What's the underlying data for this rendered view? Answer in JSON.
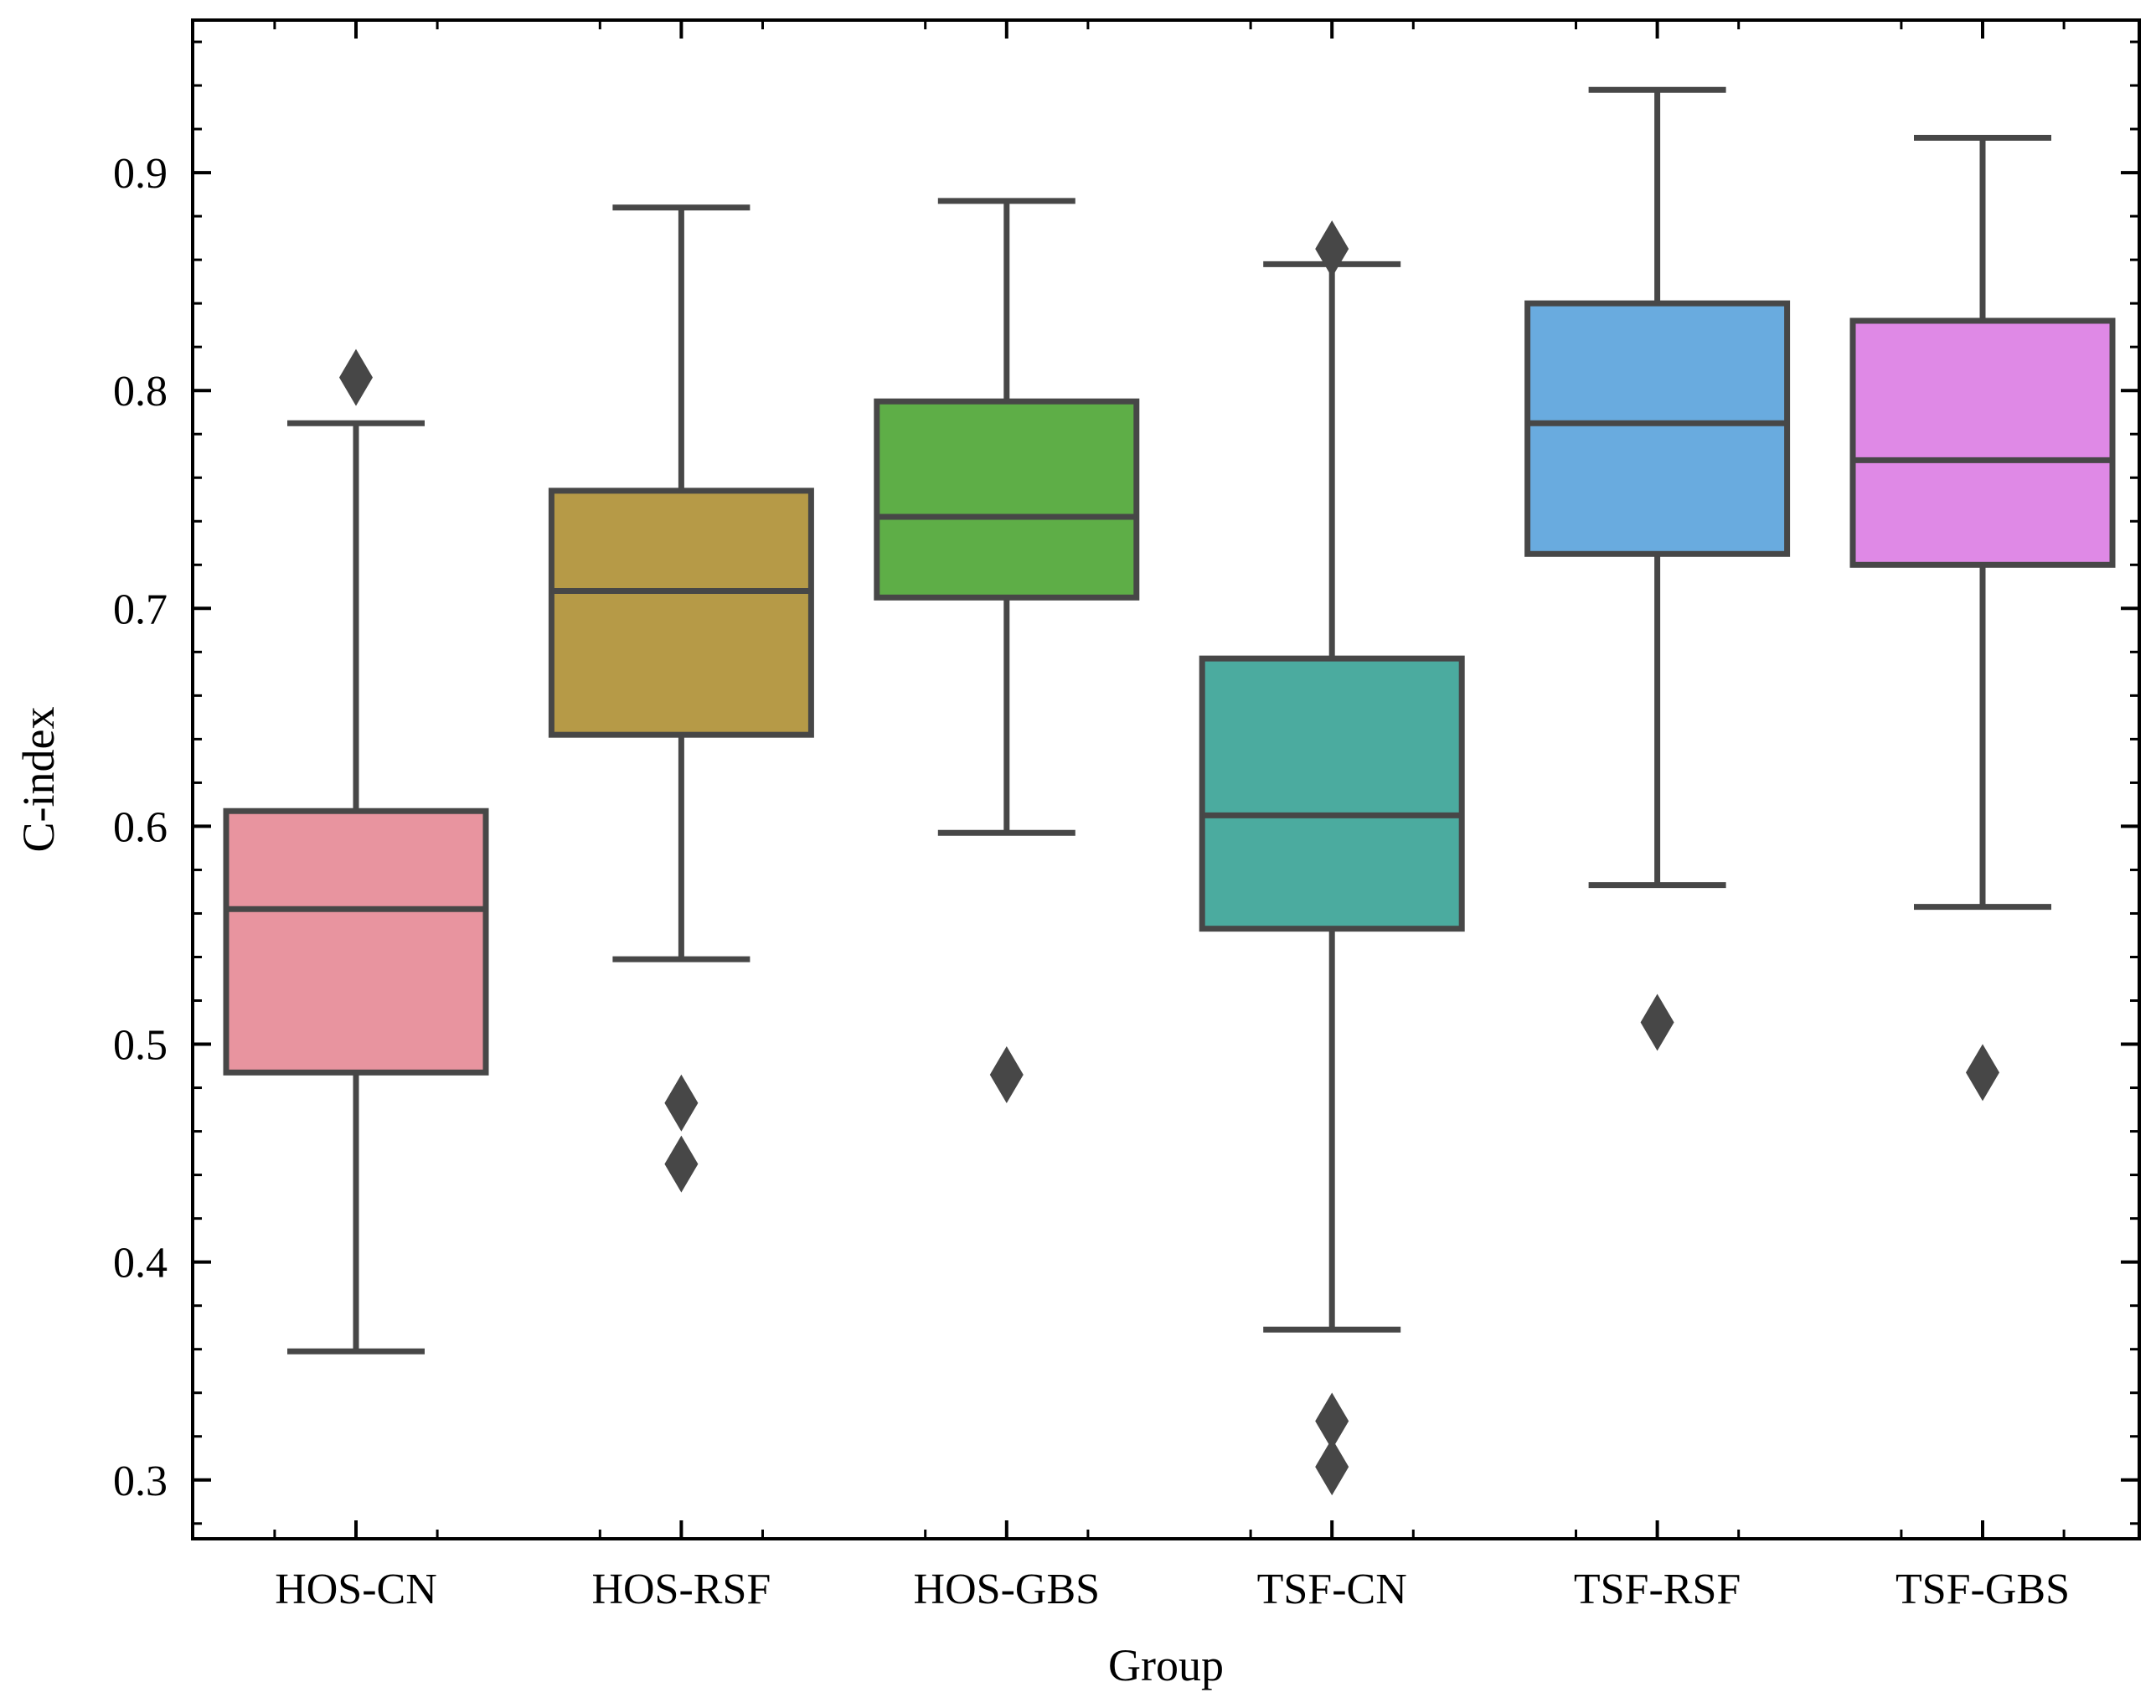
{
  "chart_data": {
    "type": "box",
    "title": "",
    "xlabel": "Group",
    "ylabel": "C-index",
    "ylim": [
      0.273,
      0.97
    ],
    "yticks": [
      0.3,
      0.4,
      0.5,
      0.6,
      0.7,
      0.8,
      0.9
    ],
    "ytick_labels": [
      "0.3",
      "0.4",
      "0.5",
      "0.6",
      "0.7",
      "0.8",
      "0.9"
    ],
    "grid": false,
    "categories": [
      "HOS-CN",
      "HOS-RSF",
      "HOS-GBS",
      "TSF-CN",
      "TSF-RSF",
      "TSF-GBS"
    ],
    "boxes": [
      {
        "name": "HOS-CN",
        "color": "#e8949f",
        "whisker_low": 0.359,
        "q1": 0.487,
        "median": 0.562,
        "q3": 0.607,
        "whisker_high": 0.785,
        "outliers": [
          0.806
        ]
      },
      {
        "name": "HOS-RSF",
        "color": "#b69a47",
        "whisker_low": 0.539,
        "q1": 0.642,
        "median": 0.708,
        "q3": 0.754,
        "whisker_high": 0.884,
        "outliers": [
          0.473,
          0.445
        ]
      },
      {
        "name": "HOS-GBS",
        "color": "#5eae47",
        "whisker_low": 0.597,
        "q1": 0.705,
        "median": 0.742,
        "q3": 0.795,
        "whisker_high": 0.887,
        "outliers": [
          0.486
        ]
      },
      {
        "name": "TSF-CN",
        "color": "#4bab9f",
        "whisker_low": 0.369,
        "q1": 0.553,
        "median": 0.605,
        "q3": 0.677,
        "whisker_high": 0.858,
        "outliers": [
          0.865,
          0.327,
          0.306
        ]
      },
      {
        "name": "TSF-RSF",
        "color": "#69abdf",
        "whisker_low": 0.573,
        "q1": 0.725,
        "median": 0.785,
        "q3": 0.84,
        "whisker_high": 0.938,
        "outliers": [
          0.51
        ]
      },
      {
        "name": "TSF-GBS",
        "color": "#df89e6",
        "whisker_low": 0.563,
        "q1": 0.72,
        "median": 0.768,
        "q3": 0.832,
        "whisker_high": 0.916,
        "outliers": [
          0.487
        ]
      }
    ],
    "line_color": "#474747"
  }
}
